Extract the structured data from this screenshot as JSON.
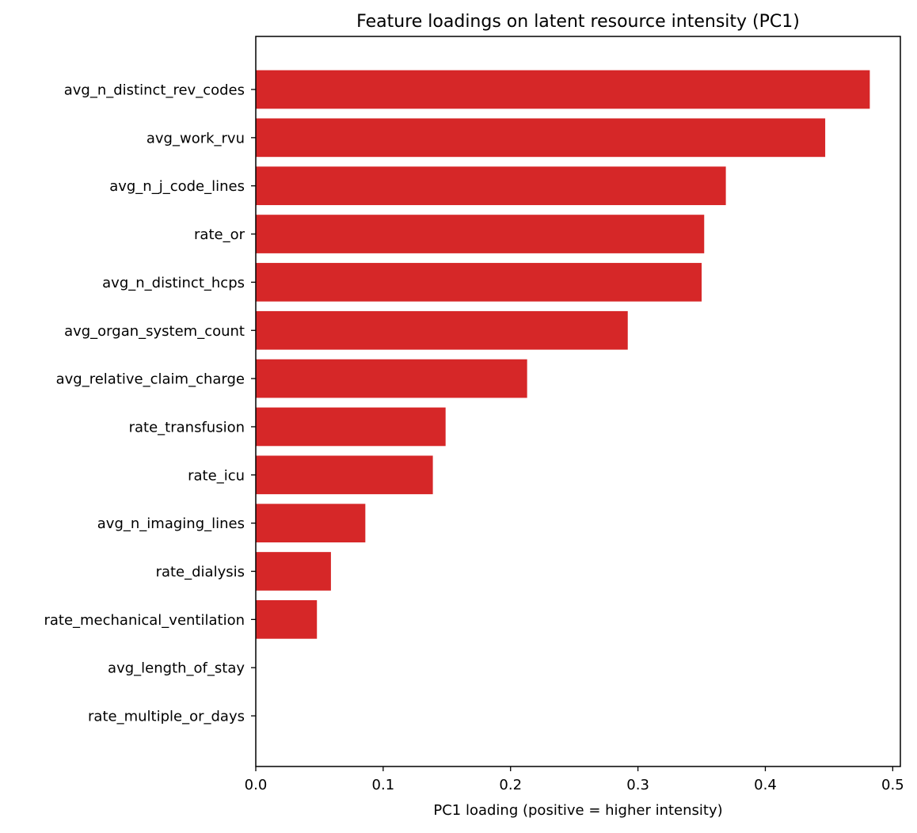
{
  "chart_data": {
    "type": "bar",
    "orientation": "horizontal",
    "title": "Feature loadings on latent resource intensity (PC1)",
    "xlabel": "PC1 loading (positive = higher intensity)",
    "ylabel": "",
    "xlim": [
      0,
      0.506
    ],
    "xticks": [
      "0.0",
      "0.1",
      "0.2",
      "0.3",
      "0.4",
      "0.5"
    ],
    "grid": false,
    "bar_color": "#d62728",
    "categories": [
      "avg_n_distinct_rev_codes",
      "avg_work_rvu",
      "avg_n_j_code_lines",
      "rate_or",
      "avg_n_distinct_hcps",
      "avg_organ_system_count",
      "avg_relative_claim_charge",
      "rate_transfusion",
      "rate_icu",
      "avg_n_imaging_lines",
      "rate_dialysis",
      "rate_mechanical_ventilation",
      "avg_length_of_stay",
      "rate_multiple_or_days"
    ],
    "values": [
      0.482,
      0.447,
      0.369,
      0.352,
      0.35,
      0.292,
      0.213,
      0.149,
      0.139,
      0.086,
      0.059,
      0.048,
      0.0,
      0.0
    ]
  }
}
